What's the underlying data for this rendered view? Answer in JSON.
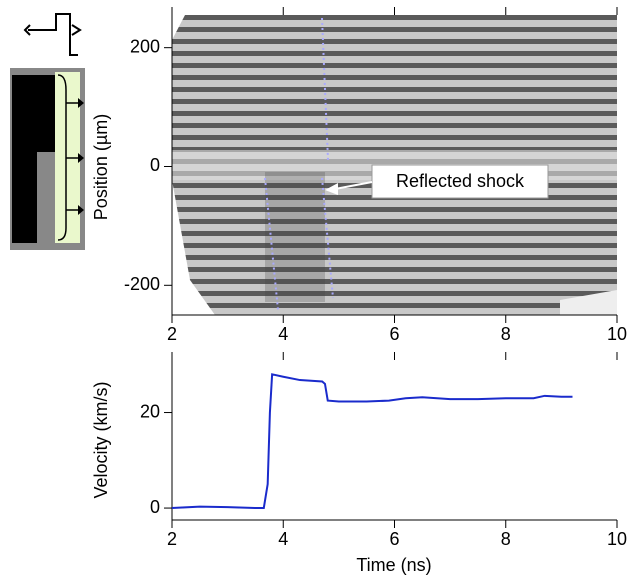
{
  "chart_data": [
    {
      "type": "image",
      "ylabel": "Position (µm)",
      "annotation": "Reflected shock",
      "xlim": [
        2,
        10
      ],
      "xticks": [
        2,
        4,
        6,
        8,
        10
      ],
      "ylim": [
        -250,
        255
      ],
      "yticks": [
        {
          "value": -200,
          "label": "-200"
        },
        0,
        200
      ]
    },
    {
      "type": "line",
      "xlabel": "Time (ns)",
      "ylabel": "Velocity (km/s)",
      "xlim": [
        2,
        10
      ],
      "xticks": [
        2,
        4,
        6,
        8,
        10
      ],
      "ylim": [
        -2.5,
        31
      ],
      "yticks": [
        0,
        20
      ],
      "x": [
        2,
        2.5,
        3,
        3.5,
        3.65,
        3.72,
        3.76,
        3.8,
        4,
        4.3,
        4.7,
        4.75,
        4.8,
        5,
        5.5,
        5.9,
        6.2,
        6.5,
        7,
        7.5,
        8,
        8.5,
        8.7,
        9,
        9.2
      ],
      "series": [
        {
          "color": "#1a2bcc",
          "values": [
            0,
            0.3,
            0.2,
            0,
            0,
            5,
            20,
            28,
            27.5,
            26.8,
            26.5,
            26,
            22.5,
            22.3,
            22.3,
            22.5,
            23,
            23.2,
            22.8,
            22.8,
            23,
            23,
            23.5,
            23.3,
            23.3
          ]
        }
      ]
    }
  ]
}
